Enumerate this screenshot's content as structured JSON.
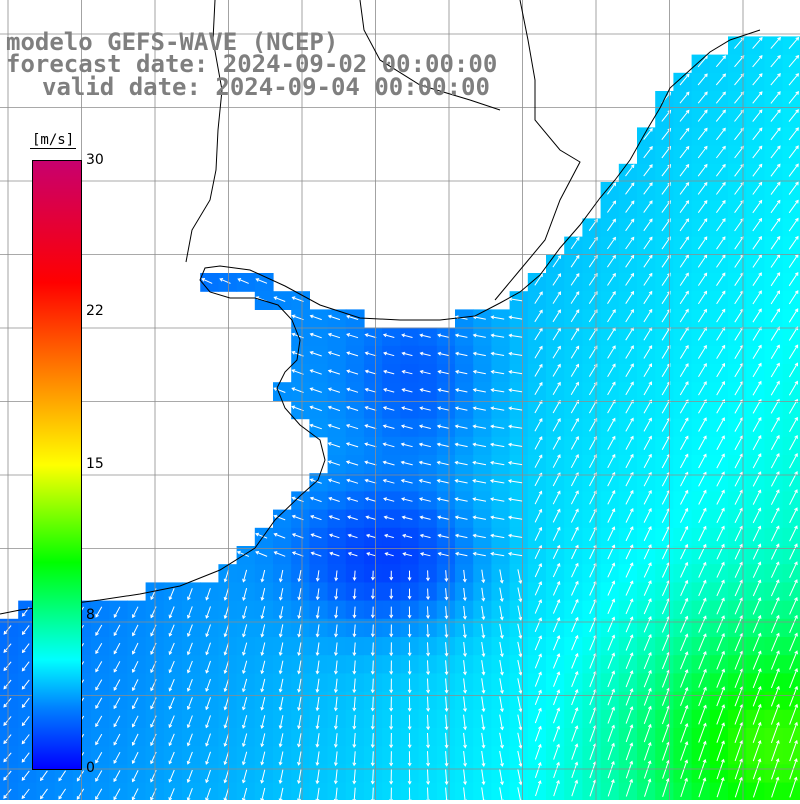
{
  "title": {
    "line1": "modelo GEFS-WAVE (NCEP)",
    "line2": "forecast date: 2024-09-02 00:00:00",
    "line3": "valid date: 2024-09-04 00:00:00"
  },
  "colorbar": {
    "unit": "[m/s]",
    "ticks": [
      "30",
      "22",
      "15",
      "8",
      "0"
    ],
    "min": 0,
    "max": 30,
    "colors": [
      "#0000ff",
      "#0080ff",
      "#00ffff",
      "#00ff00",
      "#ffff00",
      "#ff8000",
      "#ff0000",
      "#c8006e"
    ]
  },
  "map": {
    "field": "wind speed with direction arrows",
    "land_color": "#ffffff",
    "grid_color": "#8c8c8c",
    "coast_color": "#000000",
    "arrow_color": "#ffffff"
  }
}
